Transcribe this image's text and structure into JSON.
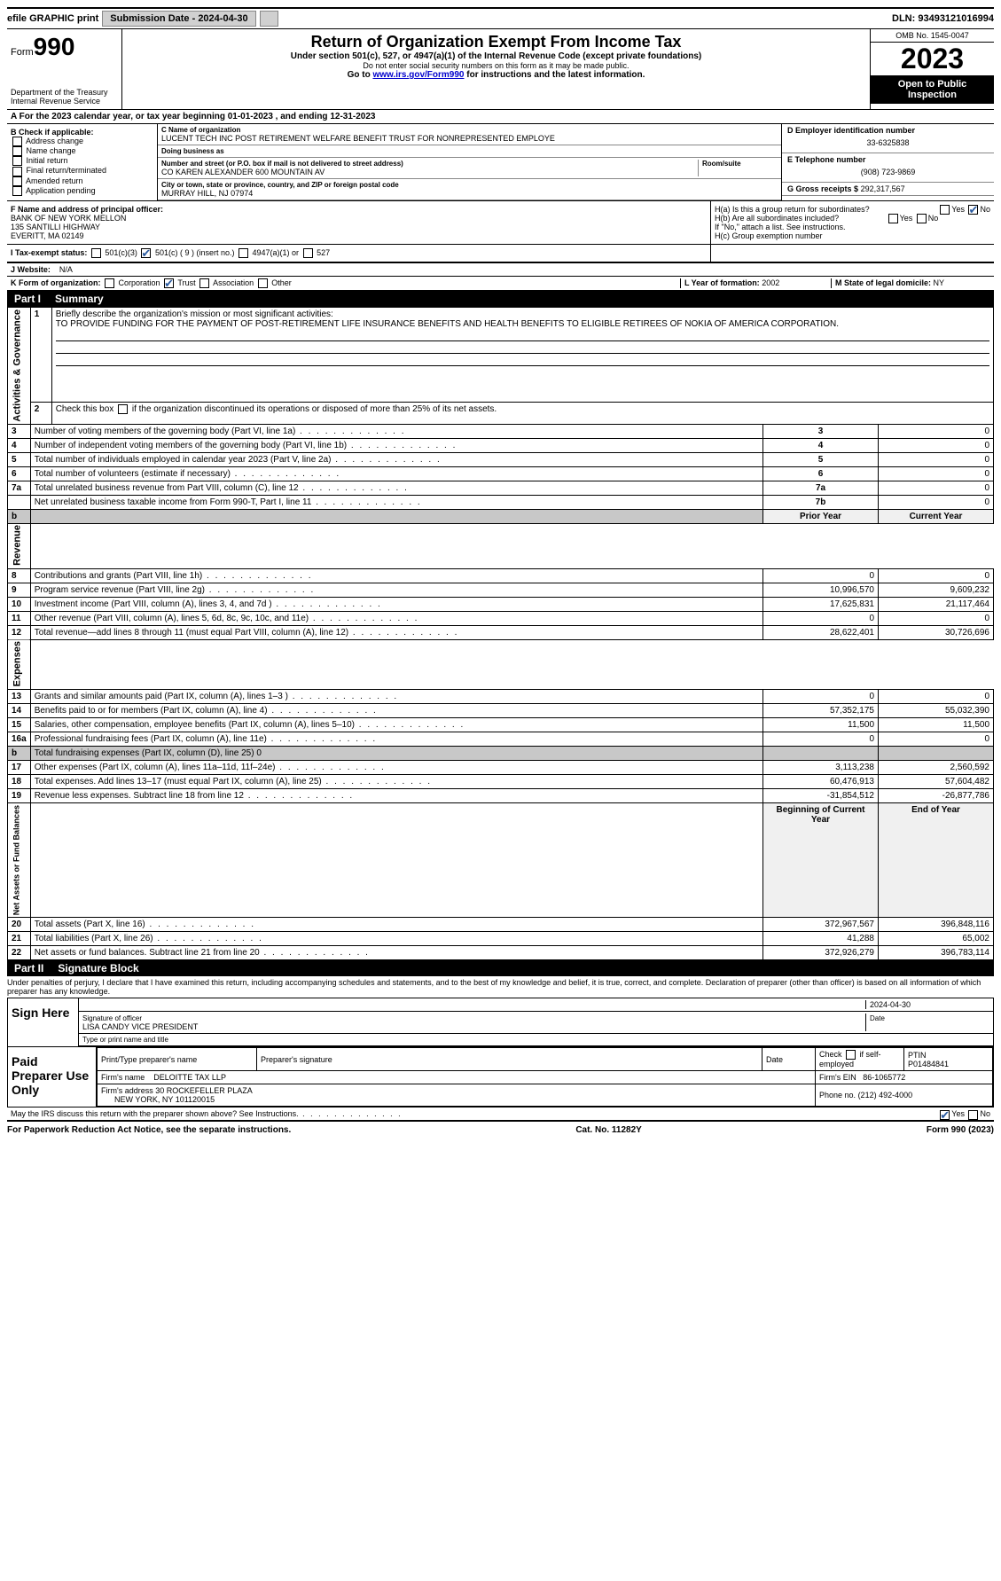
{
  "topbar": {
    "efile": "efile GRAPHIC print",
    "submission_label": "Submission Date - 2024-04-30",
    "dln_label": "DLN: 93493121016994"
  },
  "header": {
    "form_word": "Form",
    "form_num": "990",
    "dept": "Department of the Treasury",
    "irs": "Internal Revenue Service",
    "title": "Return of Organization Exempt From Income Tax",
    "sub1": "Under section 501(c), 527, or 4947(a)(1) of the Internal Revenue Code (except private foundations)",
    "sub2": "Do not enter social security numbers on this form as it may be made public.",
    "sub3_pre": "Go to ",
    "sub3_link": "www.irs.gov/Form990",
    "sub3_post": " for instructions and the latest information.",
    "omb": "OMB No. 1545-0047",
    "year": "2023",
    "open": "Open to Public Inspection"
  },
  "rowA": "A For the 2023 calendar year, or tax year beginning 01-01-2023    , and ending 12-31-2023",
  "colB": {
    "hdr": "B Check if applicable:",
    "items": [
      "Address change",
      "Name change",
      "Initial return",
      "Final return/terminated",
      "Amended return",
      "Application pending"
    ]
  },
  "colC": {
    "name_lbl": "C Name of organization",
    "name": "LUCENT TECH INC POST RETIREMENT WELFARE BENEFIT TRUST FOR NONREPRESENTED EMPLOYE",
    "dba_lbl": "Doing business as",
    "dba": "",
    "street_lbl": "Number and street (or P.O. box if mail is not delivered to street address)",
    "room_lbl": "Room/suite",
    "street": "CO KAREN ALEXANDER 600 MOUNTAIN AV",
    "city_lbl": "City or town, state or province, country, and ZIP or foreign postal code",
    "city": "MURRAY HILL, NJ  07974"
  },
  "colDE": {
    "d_lbl": "D Employer identification number",
    "d_val": "33-6325838",
    "e_lbl": "E Telephone number",
    "e_val": "(908) 723-9869",
    "g_lbl": "G Gross receipts $",
    "g_val": "292,317,567"
  },
  "rowF": {
    "lbl": "F Name and address of principal officer:",
    "name": "BANK OF NEW YORK MELLON",
    "addr1": "135 SANTILLI HIGHWAY",
    "addr2": "EVERITT, MA  02149"
  },
  "rowH": {
    "ha": "H(a)  Is this a group return for subordinates?",
    "hb": "H(b)  Are all subordinates included?",
    "hb2": "If \"No,\" attach a list. See instructions.",
    "hc": "H(c)  Group exemption number ",
    "yes": "Yes",
    "no": "No"
  },
  "rowI": {
    "lbl": "I   Tax-exempt status:",
    "o1": "501(c)(3)",
    "o2": "501(c) ( 9 ) (insert no.)",
    "o3": "4947(a)(1) or",
    "o4": "527"
  },
  "rowJ": {
    "lbl": "J   Website:",
    "val": "N/A"
  },
  "rowK": {
    "lbl": "K Form of organization:",
    "o1": "Corporation",
    "o2": "Trust",
    "o3": "Association",
    "o4": "Other"
  },
  "rowL": {
    "lbl": "L Year of formation:",
    "val": "2002"
  },
  "rowM": {
    "lbl": "M State of legal domicile:",
    "val": "NY"
  },
  "part1": {
    "pt": "Part I",
    "title": "Summary"
  },
  "summary": {
    "side1": "Activities & Governance",
    "line1_lbl": "Briefly describe the organization's mission or most significant activities:",
    "line1_txt": "TO PROVIDE FUNDING FOR THE PAYMENT OF POST-RETIREMENT LIFE INSURANCE BENEFITS AND HEALTH BENEFITS TO ELIGIBLE RETIREES OF NOKIA OF AMERICA CORPORATION.",
    "line2": "Check this box      if the organization discontinued its operations or disposed of more than 25% of its net assets.",
    "rows_gov": [
      {
        "n": "3",
        "d": "Number of voting members of the governing body (Part VI, line 1a)",
        "b": "3",
        "v": "0"
      },
      {
        "n": "4",
        "d": "Number of independent voting members of the governing body (Part VI, line 1b)",
        "b": "4",
        "v": "0"
      },
      {
        "n": "5",
        "d": "Total number of individuals employed in calendar year 2023 (Part V, line 2a)",
        "b": "5",
        "v": "0"
      },
      {
        "n": "6",
        "d": "Total number of volunteers (estimate if necessary)",
        "b": "6",
        "v": "0"
      },
      {
        "n": "7a",
        "d": "Total unrelated business revenue from Part VIII, column (C), line 12",
        "b": "7a",
        "v": "0"
      },
      {
        "n": "",
        "d": "Net unrelated business taxable income from Form 990-T, Part I, line 11",
        "b": "7b",
        "v": "0"
      }
    ],
    "side2": "Revenue",
    "hdr_prior": "Prior Year",
    "hdr_curr": "Current Year",
    "rows_rev": [
      {
        "n": "8",
        "d": "Contributions and grants (Part VIII, line 1h)",
        "p": "0",
        "c": "0"
      },
      {
        "n": "9",
        "d": "Program service revenue (Part VIII, line 2g)",
        "p": "10,996,570",
        "c": "9,609,232"
      },
      {
        "n": "10",
        "d": "Investment income (Part VIII, column (A), lines 3, 4, and 7d )",
        "p": "17,625,831",
        "c": "21,117,464"
      },
      {
        "n": "11",
        "d": "Other revenue (Part VIII, column (A), lines 5, 6d, 8c, 9c, 10c, and 11e)",
        "p": "0",
        "c": "0"
      },
      {
        "n": "12",
        "d": "Total revenue—add lines 8 through 11 (must equal Part VIII, column (A), line 12)",
        "p": "28,622,401",
        "c": "30,726,696"
      }
    ],
    "side3": "Expenses",
    "rows_exp": [
      {
        "n": "13",
        "d": "Grants and similar amounts paid (Part IX, column (A), lines 1–3 )",
        "p": "0",
        "c": "0"
      },
      {
        "n": "14",
        "d": "Benefits paid to or for members (Part IX, column (A), line 4)",
        "p": "57,352,175",
        "c": "55,032,390"
      },
      {
        "n": "15",
        "d": "Salaries, other compensation, employee benefits (Part IX, column (A), lines 5–10)",
        "p": "11,500",
        "c": "11,500"
      },
      {
        "n": "16a",
        "d": "Professional fundraising fees (Part IX, column (A), line 11e)",
        "p": "0",
        "c": "0"
      },
      {
        "n": "b",
        "d": "Total fundraising expenses (Part IX, column (D), line 25) 0",
        "p": "",
        "c": "",
        "grey": true
      },
      {
        "n": "17",
        "d": "Other expenses (Part IX, column (A), lines 11a–11d, 11f–24e)",
        "p": "3,113,238",
        "c": "2,560,592"
      },
      {
        "n": "18",
        "d": "Total expenses. Add lines 13–17 (must equal Part IX, column (A), line 25)",
        "p": "60,476,913",
        "c": "57,604,482"
      },
      {
        "n": "19",
        "d": "Revenue less expenses. Subtract line 18 from line 12",
        "p": "-31,854,512",
        "c": "-26,877,786"
      }
    ],
    "side4": "Net Assets or Fund Balances",
    "hdr_beg": "Beginning of Current Year",
    "hdr_end": "End of Year",
    "rows_net": [
      {
        "n": "20",
        "d": "Total assets (Part X, line 16)",
        "p": "372,967,567",
        "c": "396,848,116"
      },
      {
        "n": "21",
        "d": "Total liabilities (Part X, line 26)",
        "p": "41,288",
        "c": "65,002"
      },
      {
        "n": "22",
        "d": "Net assets or fund balances. Subtract line 21 from line 20",
        "p": "372,926,279",
        "c": "396,783,114"
      }
    ]
  },
  "part2": {
    "pt": "Part II",
    "title": "Signature Block"
  },
  "sig_decl": "Under penalties of perjury, I declare that I have examined this return, including accompanying schedules and statements, and to the best of my knowledge and belief, it is true, correct, and complete. Declaration of preparer (other than officer) is based on all information of which preparer has any knowledge.",
  "sign": {
    "lbl": "Sign Here",
    "date": "2024-04-30",
    "sig_lbl": "Signature of officer",
    "name": "LISA CANDY  VICE PRESIDENT",
    "type_lbl": "Type or print name and title",
    "date_lbl": "Date"
  },
  "paid": {
    "lbl": "Paid Preparer Use Only",
    "h1": "Print/Type preparer's name",
    "h2": "Preparer's signature",
    "h3": "Date",
    "h4_pre": "Check",
    "h4_post": "if self-employed",
    "h5": "PTIN",
    "ptin": "P01484841",
    "firm_lbl": "Firm's name",
    "firm": "DELOITTE TAX LLP",
    "ein_lbl": "Firm's EIN",
    "ein": "86-1065772",
    "addr_lbl": "Firm's address",
    "addr1": "30 ROCKEFELLER PLAZA",
    "addr2": "NEW YORK, NY  101120015",
    "phone_lbl": "Phone no.",
    "phone": "(212) 492-4000"
  },
  "discuss": "May the IRS discuss this return with the preparer shown above? See Instructions.",
  "footer": {
    "left": "For Paperwork Reduction Act Notice, see the separate instructions.",
    "mid": "Cat. No. 11282Y",
    "right": "Form 990 (2023)"
  }
}
